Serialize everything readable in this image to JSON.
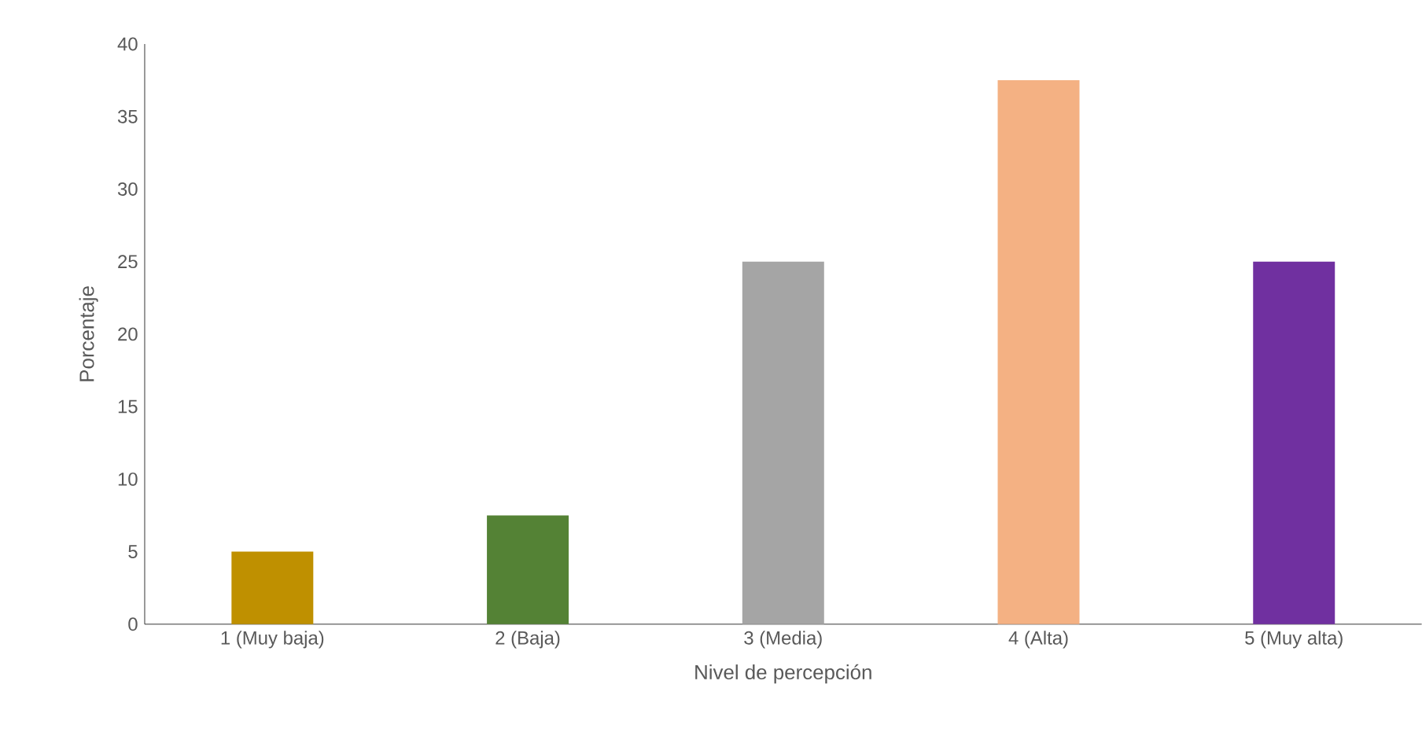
{
  "chart_data": {
    "type": "bar",
    "xlabel": "Nivel de percepción",
    "ylabel": "Porcentaje",
    "categories": [
      "1 (Muy baja)",
      "2 (Baja)",
      "3 (Media)",
      "4 (Alta)",
      "5 (Muy alta)"
    ],
    "values": [
      5,
      7.5,
      25,
      37.5,
      25
    ],
    "colors": [
      "#bf9000",
      "#548235",
      "#a5a5a5",
      "#f4b183",
      "#7030a0"
    ],
    "ylim": [
      0,
      40
    ],
    "yticks": [
      0,
      5,
      10,
      15,
      20,
      25,
      30,
      35,
      40
    ],
    "grid": false
  }
}
